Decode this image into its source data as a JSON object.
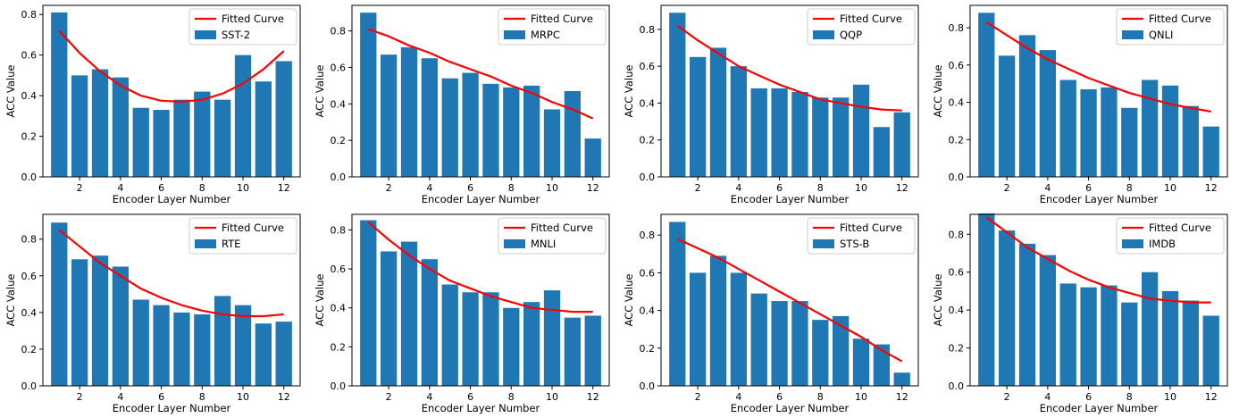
{
  "chart_data": [
    {
      "type": "bar",
      "name": "SST-2",
      "x": [
        1,
        2,
        3,
        4,
        5,
        6,
        7,
        8,
        9,
        10,
        11,
        12
      ],
      "values": [
        0.81,
        0.5,
        0.53,
        0.49,
        0.34,
        0.33,
        0.38,
        0.42,
        0.38,
        0.6,
        0.47,
        0.57
      ],
      "fit": [
        0.72,
        0.61,
        0.52,
        0.45,
        0.4,
        0.375,
        0.37,
        0.38,
        0.41,
        0.46,
        0.53,
        0.62
      ],
      "xlabel": "Encoder Layer Number",
      "ylabel": "ACC Value",
      "ylim": [
        0,
        0.845
      ],
      "xticks": [
        2,
        4,
        6,
        8,
        10,
        12
      ],
      "yticks": [
        0.0,
        0.2,
        0.4,
        0.6,
        0.8
      ]
    },
    {
      "type": "bar",
      "name": "MRPC",
      "x": [
        1,
        2,
        3,
        4,
        5,
        6,
        7,
        8,
        9,
        10,
        11,
        12
      ],
      "values": [
        0.9,
        0.67,
        0.71,
        0.65,
        0.54,
        0.57,
        0.51,
        0.49,
        0.5,
        0.37,
        0.47,
        0.21
      ],
      "fit": [
        0.81,
        0.77,
        0.72,
        0.68,
        0.63,
        0.59,
        0.55,
        0.5,
        0.46,
        0.41,
        0.37,
        0.32
      ],
      "xlabel": "Encoder Layer Number",
      "ylabel": "ACC Value",
      "ylim": [
        0,
        0.94
      ],
      "xticks": [
        2,
        4,
        6,
        8,
        10,
        12
      ],
      "yticks": [
        0.0,
        0.2,
        0.4,
        0.6,
        0.8
      ]
    },
    {
      "type": "bar",
      "name": "QQP",
      "x": [
        1,
        2,
        3,
        4,
        5,
        6,
        7,
        8,
        9,
        10,
        11,
        12
      ],
      "values": [
        0.89,
        0.65,
        0.7,
        0.6,
        0.48,
        0.48,
        0.46,
        0.43,
        0.43,
        0.5,
        0.27,
        0.35
      ],
      "fit": [
        0.82,
        0.74,
        0.67,
        0.6,
        0.55,
        0.5,
        0.46,
        0.42,
        0.4,
        0.38,
        0.365,
        0.36
      ],
      "xlabel": "Encoder Layer Number",
      "ylabel": "ACC Value",
      "ylim": [
        0,
        0.93
      ],
      "xticks": [
        2,
        4,
        6,
        8,
        10,
        12
      ],
      "yticks": [
        0.0,
        0.2,
        0.4,
        0.6,
        0.8
      ]
    },
    {
      "type": "bar",
      "name": "QNLI",
      "x": [
        1,
        2,
        3,
        4,
        5,
        6,
        7,
        8,
        9,
        10,
        11,
        12
      ],
      "values": [
        0.88,
        0.65,
        0.76,
        0.68,
        0.52,
        0.47,
        0.48,
        0.37,
        0.52,
        0.49,
        0.38,
        0.27
      ],
      "fit": [
        0.83,
        0.76,
        0.69,
        0.63,
        0.58,
        0.53,
        0.49,
        0.45,
        0.42,
        0.39,
        0.37,
        0.35
      ],
      "xlabel": "Encoder Layer Number",
      "ylabel": "ACC Value",
      "ylim": [
        0,
        0.92
      ],
      "xticks": [
        2,
        4,
        6,
        8,
        10,
        12
      ],
      "yticks": [
        0.0,
        0.2,
        0.4,
        0.6,
        0.8
      ]
    },
    {
      "type": "bar",
      "name": "RTE",
      "x": [
        1,
        2,
        3,
        4,
        5,
        6,
        7,
        8,
        9,
        10,
        11,
        12
      ],
      "values": [
        0.89,
        0.69,
        0.71,
        0.65,
        0.47,
        0.44,
        0.4,
        0.39,
        0.49,
        0.44,
        0.34,
        0.35
      ],
      "fit": [
        0.85,
        0.76,
        0.67,
        0.6,
        0.53,
        0.48,
        0.44,
        0.41,
        0.39,
        0.38,
        0.38,
        0.39
      ],
      "xlabel": "Encoder Layer Number",
      "ylabel": "ACC Value",
      "ylim": [
        0,
        0.935
      ],
      "xticks": [
        2,
        4,
        6,
        8,
        10,
        12
      ],
      "yticks": [
        0.0,
        0.2,
        0.4,
        0.6,
        0.8
      ]
    },
    {
      "type": "bar",
      "name": "MNLI",
      "x": [
        1,
        2,
        3,
        4,
        5,
        6,
        7,
        8,
        9,
        10,
        11,
        12
      ],
      "values": [
        0.85,
        0.69,
        0.74,
        0.65,
        0.52,
        0.48,
        0.48,
        0.4,
        0.43,
        0.49,
        0.35,
        0.36
      ],
      "fit": [
        0.84,
        0.75,
        0.67,
        0.6,
        0.54,
        0.5,
        0.46,
        0.43,
        0.4,
        0.39,
        0.38,
        0.38
      ],
      "xlabel": "Encoder Layer Number",
      "ylabel": "ACC Value",
      "ylim": [
        0,
        0.88
      ],
      "xticks": [
        2,
        4,
        6,
        8,
        10,
        12
      ],
      "yticks": [
        0.0,
        0.2,
        0.4,
        0.6,
        0.8
      ]
    },
    {
      "type": "bar",
      "name": "STS-B",
      "x": [
        1,
        2,
        3,
        4,
        5,
        6,
        7,
        8,
        9,
        10,
        11,
        12
      ],
      "values": [
        0.87,
        0.6,
        0.69,
        0.6,
        0.49,
        0.45,
        0.45,
        0.35,
        0.37,
        0.25,
        0.22,
        0.07
      ],
      "fit": [
        0.78,
        0.73,
        0.68,
        0.62,
        0.56,
        0.5,
        0.44,
        0.38,
        0.32,
        0.26,
        0.19,
        0.13
      ],
      "xlabel": "Encoder Layer Number",
      "ylabel": "ACC Value",
      "ylim": [
        0,
        0.91
      ],
      "xticks": [
        2,
        4,
        6,
        8,
        10,
        12
      ],
      "yticks": [
        0.0,
        0.2,
        0.4,
        0.6,
        0.8
      ]
    },
    {
      "type": "bar",
      "name": "IMDB",
      "x": [
        1,
        2,
        3,
        4,
        5,
        6,
        7,
        8,
        9,
        10,
        11,
        12
      ],
      "values": [
        0.91,
        0.82,
        0.75,
        0.69,
        0.54,
        0.52,
        0.53,
        0.44,
        0.6,
        0.5,
        0.45,
        0.37
      ],
      "fit": [
        0.89,
        0.81,
        0.73,
        0.67,
        0.61,
        0.56,
        0.52,
        0.49,
        0.46,
        0.45,
        0.44,
        0.44
      ],
      "xlabel": "Encoder Layer Number",
      "ylabel": "ACC Value",
      "ylim": [
        0,
        0.905
      ],
      "xticks": [
        2,
        4,
        6,
        8,
        10,
        12
      ],
      "yticks": [
        0.0,
        0.2,
        0.4,
        0.6,
        0.8
      ]
    }
  ],
  "legend": {
    "fit_label": "Fitted Curve"
  },
  "colors": {
    "bar": "#1f77b4",
    "fit": "#ff0000",
    "axis": "#000000"
  }
}
